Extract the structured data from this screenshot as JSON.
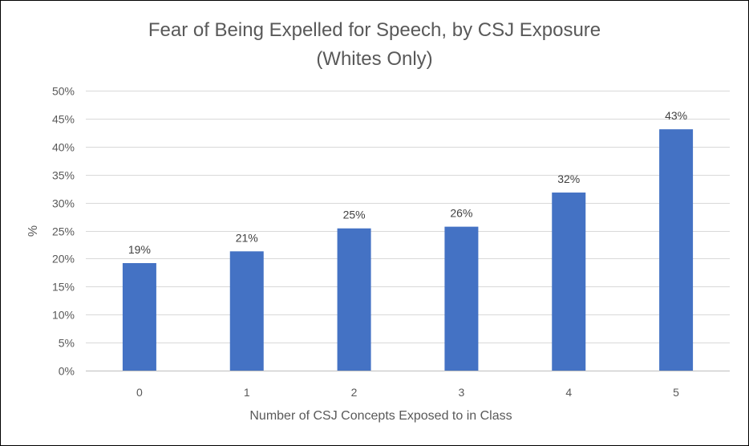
{
  "chart_data": {
    "type": "bar",
    "title": "Fear of Being Expelled for Speech, by CSJ Exposure",
    "subtitle": "(Whites Only)",
    "xlabel": "Number of CSJ Concepts Exposed to in Class",
    "ylabel": "%",
    "categories": [
      "0",
      "1",
      "2",
      "3",
      "4",
      "5"
    ],
    "values": [
      19.2,
      21.3,
      25.4,
      25.7,
      31.8,
      43.1
    ],
    "data_labels": [
      "19%",
      "21%",
      "25%",
      "26%",
      "32%",
      "43%"
    ],
    "ylim": [
      0,
      50
    ],
    "yticks": [
      0,
      5,
      10,
      15,
      20,
      25,
      30,
      35,
      40,
      45,
      50
    ],
    "ytick_labels": [
      "0%",
      "5%",
      "10%",
      "15%",
      "20%",
      "25%",
      "30%",
      "35%",
      "40%",
      "45%",
      "50%"
    ],
    "bar_color": "#4472c4",
    "grid": true,
    "legend": "none"
  }
}
